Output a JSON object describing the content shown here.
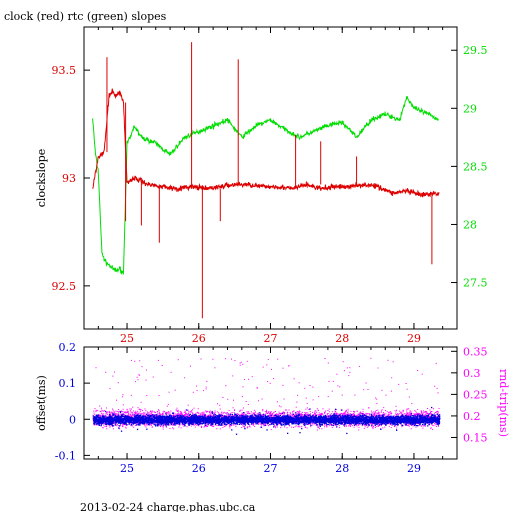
{
  "header": {
    "title": "clock (red) rtc (green) slopes"
  },
  "footer": {
    "text": "2013-02-24 charge.phas.ubc.ca"
  },
  "colors": {
    "red": "#dd0000",
    "green": "#00dd00",
    "blue": "#0000dd",
    "magenta": "#ff00ff",
    "black": "#000000"
  },
  "chart_data": [
    {
      "type": "line",
      "title": "clock (red) rtc (green) slopes",
      "ylabel": "clockslope",
      "y2label": "",
      "xlim": [
        24.4,
        29.6
      ],
      "ylim": [
        92.3,
        93.7
      ],
      "y2lim": [
        27.1,
        29.7
      ],
      "x_ticks": [
        25,
        26,
        27,
        28,
        29
      ],
      "x_tick_labels": [
        "25",
        "26",
        "27",
        "28",
        "29"
      ],
      "y_ticks": [
        92.5,
        93,
        93.5
      ],
      "y_tick_labels": [
        "92.5",
        "93",
        "93.5"
      ],
      "y2_ticks": [
        27.5,
        28,
        28.5,
        29,
        29.5
      ],
      "y2_tick_labels": [
        "27.5",
        "28",
        "28.5",
        "29",
        "29.5"
      ],
      "series": [
        {
          "color": "red",
          "axis": "left",
          "x": [
            24.52,
            24.6,
            24.68,
            24.75,
            24.8,
            24.85,
            24.9,
            24.95,
            25.0,
            25.1,
            25.3,
            25.5,
            25.7,
            25.9,
            26.1,
            26.3,
            26.5,
            26.7,
            26.9,
            27.1,
            27.3,
            27.5,
            27.7,
            27.9,
            28.1,
            28.3,
            28.5,
            28.7,
            28.9,
            29.1,
            29.35
          ],
          "y": [
            92.95,
            93.1,
            93.12,
            93.38,
            93.4,
            93.38,
            93.4,
            93.35,
            92.98,
            93.0,
            92.97,
            92.96,
            92.95,
            92.96,
            92.95,
            92.96,
            92.97,
            92.97,
            92.96,
            92.96,
            92.95,
            92.97,
            92.95,
            92.96,
            92.96,
            92.97,
            92.96,
            92.93,
            92.94,
            92.92,
            92.93
          ],
          "spikes": [
            {
              "x": 24.72,
              "y": 93.56
            },
            {
              "x": 24.98,
              "y": 92.8
            },
            {
              "x": 25.2,
              "y": 92.78
            },
            {
              "x": 25.45,
              "y": 92.7
            },
            {
              "x": 25.9,
              "y": 93.63
            },
            {
              "x": 26.05,
              "y": 92.35
            },
            {
              "x": 26.3,
              "y": 92.8
            },
            {
              "x": 26.55,
              "y": 93.55
            },
            {
              "x": 27.35,
              "y": 93.2
            },
            {
              "x": 27.7,
              "y": 93.17
            },
            {
              "x": 28.2,
              "y": 93.1
            },
            {
              "x": 29.25,
              "y": 92.6
            }
          ]
        },
        {
          "color": "green",
          "axis": "right",
          "x": [
            24.52,
            24.56,
            24.6,
            24.65,
            24.7,
            24.75,
            24.8,
            24.85,
            24.9,
            24.95,
            25.0,
            25.05,
            25.1,
            25.2,
            25.4,
            25.6,
            25.8,
            26.0,
            26.2,
            26.4,
            26.6,
            26.8,
            27.0,
            27.2,
            27.4,
            27.6,
            27.8,
            28.0,
            28.2,
            28.4,
            28.6,
            28.8,
            28.9,
            29.0,
            29.2,
            29.35
          ],
          "y": [
            28.92,
            28.6,
            28.45,
            27.75,
            27.68,
            27.65,
            27.62,
            27.6,
            27.62,
            27.58,
            28.7,
            28.75,
            28.85,
            28.75,
            28.7,
            28.6,
            28.75,
            28.8,
            28.85,
            28.9,
            28.75,
            28.85,
            28.9,
            28.82,
            28.75,
            28.8,
            28.85,
            28.88,
            28.75,
            28.9,
            28.95,
            28.9,
            29.1,
            29.0,
            28.95,
            28.9
          ]
        }
      ]
    },
    {
      "type": "scatter",
      "ylabel": "offset(ms)",
      "y2label": "rnd-trip(ms)",
      "xlim": [
        24.4,
        29.6
      ],
      "ylim": [
        -0.11,
        0.2
      ],
      "y2lim": [
        0.1,
        0.36
      ],
      "x_ticks": [
        25,
        26,
        27,
        28,
        29
      ],
      "x_tick_labels": [
        "25",
        "26",
        "27",
        "28",
        "29"
      ],
      "y_ticks": [
        -0.1,
        0,
        0.1,
        0.2
      ],
      "y_tick_labels": [
        "-0.1",
        "0",
        "0.1",
        "0.2"
      ],
      "y2_ticks": [
        0.15,
        0.2,
        0.25,
        0.3,
        0.35
      ],
      "y2_tick_labels": [
        "0.15",
        "0.2",
        "0.25",
        "0.3",
        "0.35"
      ],
      "series": [
        {
          "color": "blue",
          "axis": "left",
          "x_range": [
            24.52,
            29.35
          ],
          "center": 0.0,
          "spread": 0.018
        },
        {
          "color": "magenta",
          "axis": "right",
          "x_range": [
            24.52,
            29.35
          ],
          "center": 0.195,
          "spread": 0.02
        }
      ]
    }
  ]
}
